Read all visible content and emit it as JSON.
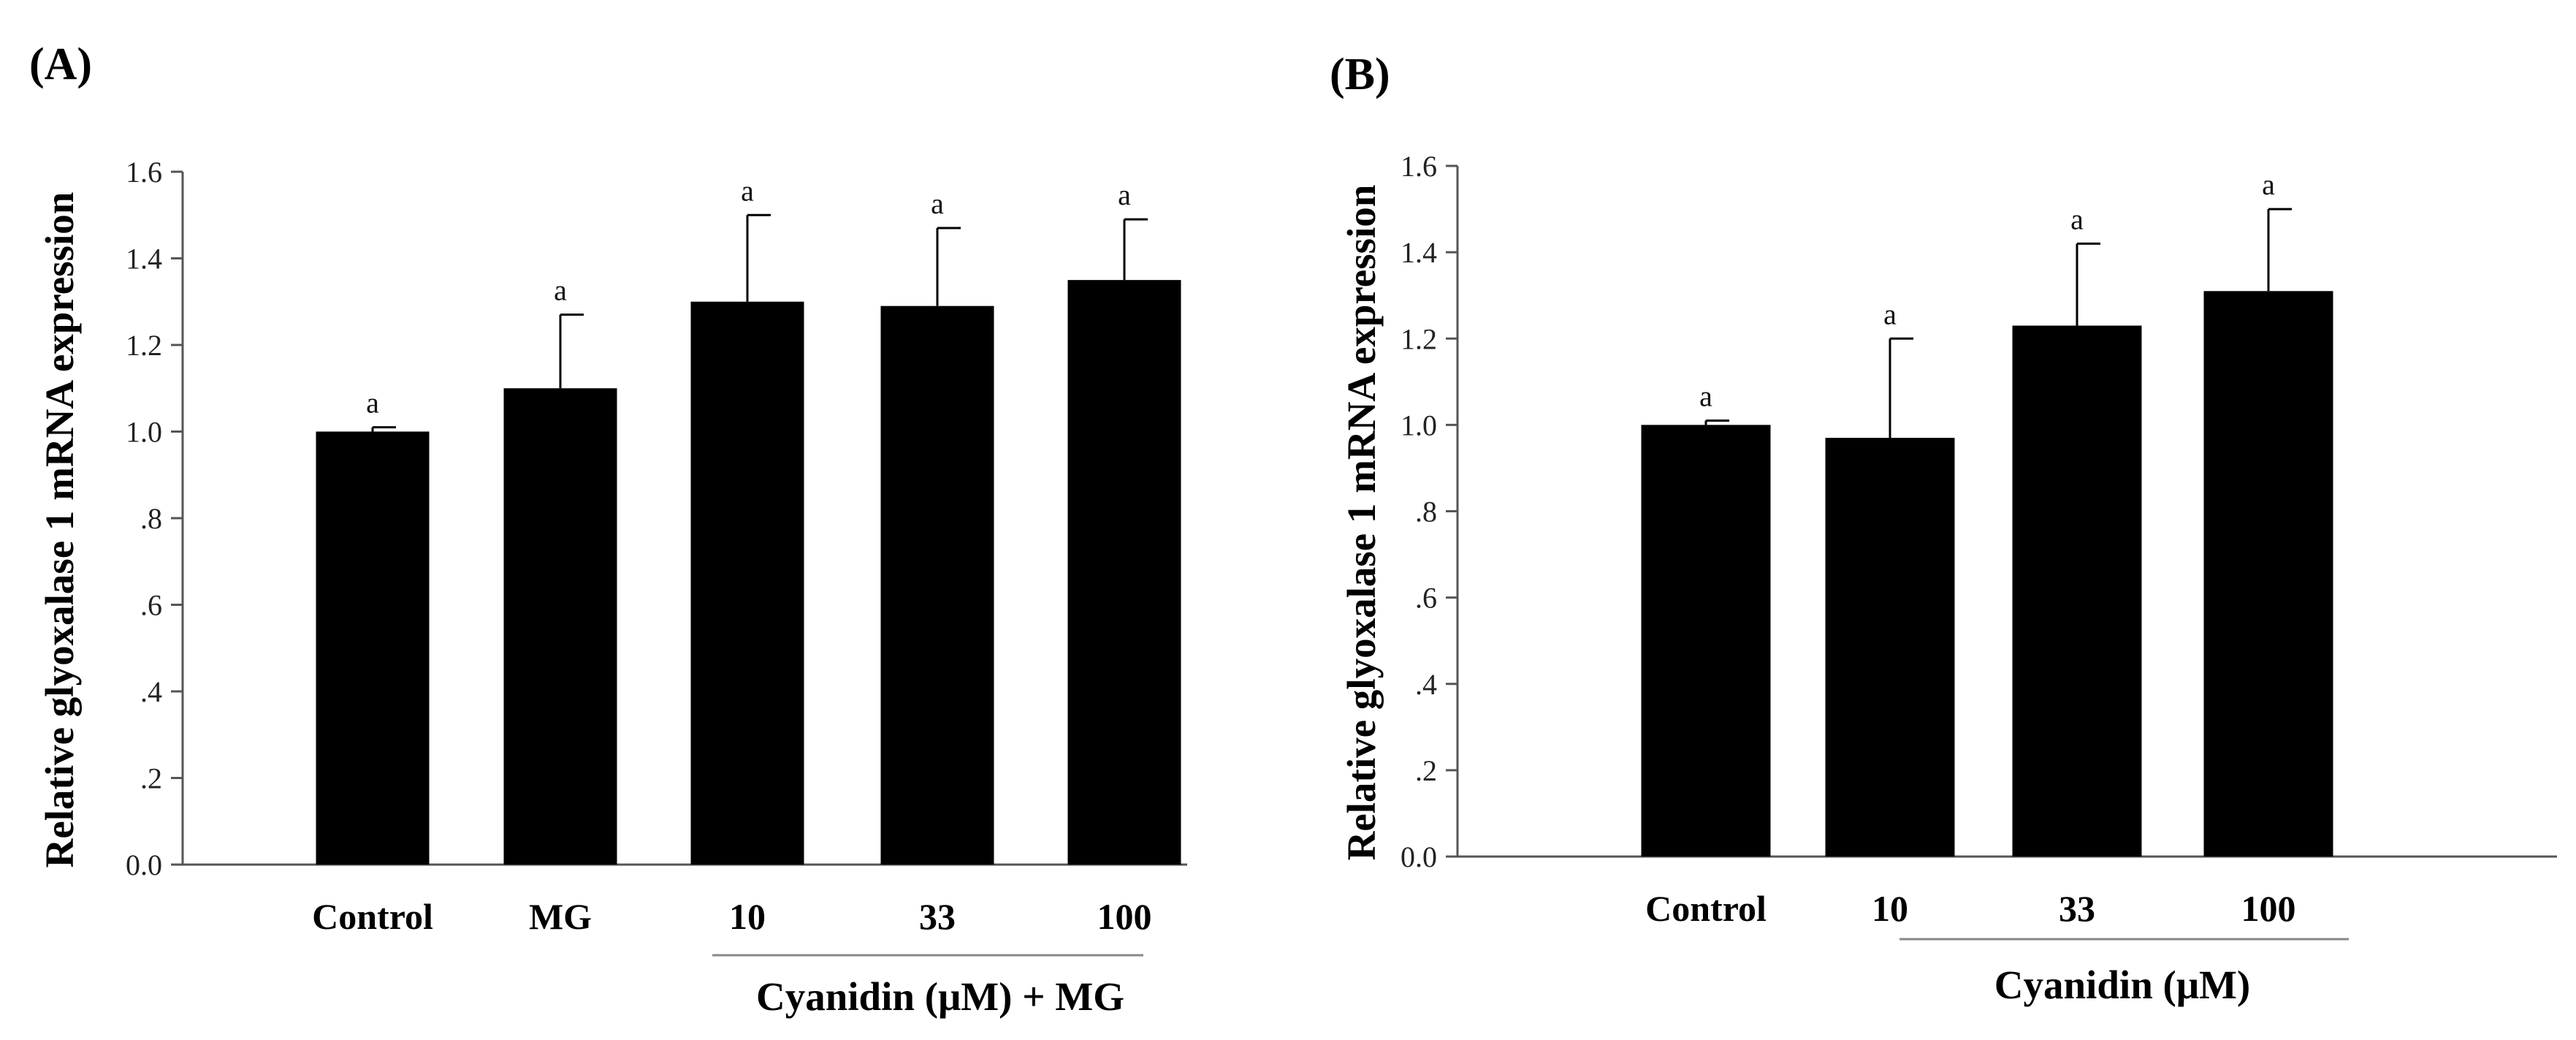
{
  "panels": [
    {
      "label": "(A)",
      "group_label": "Cyanidin (μM) + MG"
    },
    {
      "label": "(B)",
      "group_label": "Cyanidin (μM)"
    }
  ],
  "chart_data": [
    {
      "type": "bar",
      "title": "",
      "ylabel": "Relative glyoxalase 1 mRNA expression",
      "xlabel": "Cyanidin (μM) + MG",
      "ylim": [
        0,
        1.6
      ],
      "yticks": [
        0.0,
        0.2,
        0.4,
        0.6,
        0.8,
        1.0,
        1.2,
        1.4,
        1.6
      ],
      "ytick_labels": [
        "0.0",
        ".2",
        ".4",
        ".6",
        ".8",
        "1.0",
        "1.2",
        "1.4",
        "1.6"
      ],
      "categories": [
        "Control",
        "MG",
        "10",
        "33",
        "100"
      ],
      "values": [
        1.0,
        1.1,
        1.3,
        1.29,
        1.35
      ],
      "errors": [
        0.01,
        0.17,
        0.2,
        0.18,
        0.14
      ],
      "annotations": [
        "a",
        "a",
        "a",
        "a",
        "a"
      ],
      "grouped_categories": [
        "10",
        "33",
        "100"
      ],
      "grid": false,
      "bar_color": "#000000"
    },
    {
      "type": "bar",
      "title": "",
      "ylabel": "Relative glyoxalase 1 mRNA expression",
      "xlabel": "Cyanidin (μM)",
      "ylim": [
        0,
        1.6
      ],
      "yticks": [
        0.0,
        0.2,
        0.4,
        0.6,
        0.8,
        1.0,
        1.2,
        1.4,
        1.6
      ],
      "ytick_labels": [
        "0.0",
        ".2",
        ".4",
        ".6",
        ".8",
        "1.0",
        "1.2",
        "1.4",
        "1.6"
      ],
      "categories": [
        "Control",
        "10",
        "33",
        "100"
      ],
      "values": [
        1.0,
        0.97,
        1.23,
        1.31
      ],
      "errors": [
        0.01,
        0.23,
        0.19,
        0.19
      ],
      "annotations": [
        "a",
        "a",
        "a",
        "a"
      ],
      "grouped_categories": [
        "10",
        "33",
        "100"
      ],
      "grid": false,
      "bar_color": "#000000"
    }
  ]
}
